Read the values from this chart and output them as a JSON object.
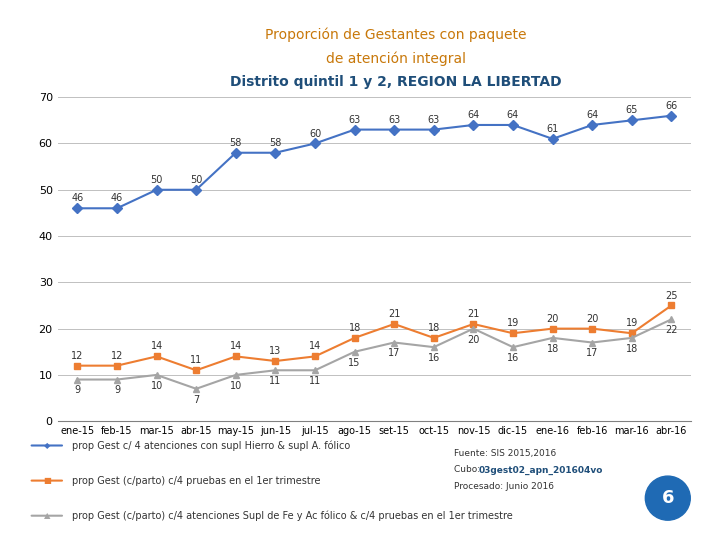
{
  "title_line1": "Proporción de Gestantes con paquete",
  "title_line2": "de atención integral",
  "title_line3": "Distrito quintil 1 y 2, REGION LA LIBERTAD",
  "title_color1": "#C8780A",
  "title_color2": "#C8780A",
  "title_color3": "#1F4E79",
  "x_labels": [
    "ene-15",
    "feb-15",
    "mar-15",
    "abr-15",
    "may-15",
    "jun-15",
    "jul-15",
    "ago-15",
    "set-15",
    "oct-15",
    "nov-15",
    "dic-15",
    "ene-16",
    "feb-16",
    "mar-16",
    "abr-16"
  ],
  "series1": {
    "label": "prop Gest c/ 4 atenciones con supl Hierro & supl A. fólico",
    "values": [
      46,
      46,
      50,
      50,
      58,
      58,
      60,
      63,
      63,
      63,
      64,
      64,
      61,
      64,
      65,
      66
    ],
    "color": "#4472C4",
    "marker": "D",
    "markersize": 5,
    "linewidth": 1.5
  },
  "series2": {
    "label": "prop Gest (c/parto) c/4 pruebas en el 1er trimestre",
    "values": [
      12,
      12,
      14,
      11,
      14,
      13,
      14,
      18,
      21,
      18,
      21,
      19,
      20,
      20,
      19,
      25
    ],
    "color": "#ED7D31",
    "marker": "s",
    "markersize": 5,
    "linewidth": 1.5
  },
  "series3": {
    "label": "prop Gest (c/parto) c/4 atenciones Supl de Fe y Ac fólico & c/4 pruebas en el 1er trimestre",
    "values": [
      9,
      9,
      10,
      7,
      10,
      11,
      11,
      15,
      17,
      16,
      20,
      16,
      18,
      17,
      18,
      22
    ],
    "color": "#A5A5A5",
    "marker": "^",
    "markersize": 5,
    "linewidth": 1.5
  },
  "ylim": [
    0,
    70
  ],
  "yticks": [
    0,
    10,
    20,
    30,
    40,
    50,
    60,
    70
  ],
  "background_color": "#FFFFFF",
  "grid_color": "#C0C0C0",
  "fuente_text": "Fuente: SIS 2015,2016",
  "cubo_label": "Cubo: ",
  "cubo_bold": "03gest02_apn_201604vo",
  "procesado_text": "Procesado: Junio 2016",
  "badge_number": "6",
  "badge_color": "#1F6AB4"
}
